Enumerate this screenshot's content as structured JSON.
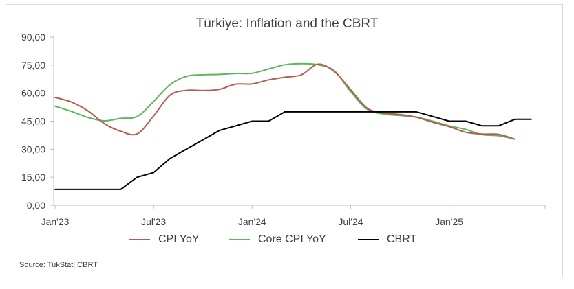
{
  "chart_data": {
    "type": "line",
    "title": "Türkiye: Inflation and the CBRT",
    "xlabel": "",
    "ylabel": "",
    "ylim": [
      0,
      90
    ],
    "yticks": [
      0,
      15,
      30,
      45,
      60,
      75,
      90
    ],
    "ytick_labels": [
      "0,00",
      "15,00",
      "30,00",
      "45,00",
      "60,00",
      "75,00",
      "90,00"
    ],
    "xticks": [
      "2023-01",
      "2023-07",
      "2024-01",
      "2024-07",
      "2025-01"
    ],
    "xtick_labels": [
      "Jan'23",
      "Jul'23",
      "Jan'24",
      "Jul'24",
      "Jan'25"
    ],
    "grid": false,
    "legend_position": "bottom",
    "source": "Source: TukStat| CBRT",
    "series": [
      {
        "name": "CPI YoY",
        "color": "#b35c50",
        "points": [
          [
            "2023-01",
            57.7
          ],
          [
            "2023-02",
            55.2
          ],
          [
            "2023-03",
            50.5
          ],
          [
            "2023-04",
            43.7
          ],
          [
            "2023-05",
            39.6
          ],
          [
            "2023-06",
            38.2
          ],
          [
            "2023-07",
            47.8
          ],
          [
            "2023-08",
            58.9
          ],
          [
            "2023-09",
            61.5
          ],
          [
            "2023-10",
            61.4
          ],
          [
            "2023-11",
            62.0
          ],
          [
            "2023-12",
            64.8
          ],
          [
            "2024-01",
            64.9
          ],
          [
            "2024-02",
            67.1
          ],
          [
            "2024-03",
            68.5
          ],
          [
            "2024-04",
            69.8
          ],
          [
            "2024-05",
            75.5
          ],
          [
            "2024-06",
            71.6
          ],
          [
            "2024-07",
            61.8
          ],
          [
            "2024-08",
            52.0
          ],
          [
            "2024-09",
            49.4
          ],
          [
            "2024-10",
            48.6
          ],
          [
            "2024-11",
            47.1
          ],
          [
            "2024-12",
            44.4
          ],
          [
            "2025-01",
            42.1
          ],
          [
            "2025-02",
            39.1
          ],
          [
            "2025-03",
            38.1
          ],
          [
            "2025-04",
            37.9
          ],
          [
            "2025-05",
            35.4
          ]
        ]
      },
      {
        "name": "Core CPI YoY",
        "color": "#5cb85c",
        "points": [
          [
            "2023-01",
            53.0
          ],
          [
            "2023-02",
            50.2
          ],
          [
            "2023-03",
            47.0
          ],
          [
            "2023-04",
            45.2
          ],
          [
            "2023-05",
            46.5
          ],
          [
            "2023-06",
            47.5
          ],
          [
            "2023-07",
            55.5
          ],
          [
            "2023-08",
            64.5
          ],
          [
            "2023-09",
            69.0
          ],
          [
            "2023-10",
            69.8
          ],
          [
            "2023-11",
            70.0
          ],
          [
            "2023-12",
            70.5
          ],
          [
            "2024-01",
            70.6
          ],
          [
            "2024-02",
            72.9
          ],
          [
            "2024-03",
            75.2
          ],
          [
            "2024-04",
            75.8
          ],
          [
            "2024-05",
            75.2
          ],
          [
            "2024-06",
            72.0
          ],
          [
            "2024-07",
            60.8
          ],
          [
            "2024-08",
            51.4
          ],
          [
            "2024-09",
            48.8
          ],
          [
            "2024-10",
            48.0
          ],
          [
            "2024-11",
            47.2
          ],
          [
            "2024-12",
            45.0
          ],
          [
            "2025-01",
            42.5
          ],
          [
            "2025-02",
            40.6
          ],
          [
            "2025-03",
            37.8
          ],
          [
            "2025-04",
            37.2
          ],
          [
            "2025-05",
            35.4
          ]
        ]
      },
      {
        "name": "CBRT",
        "color": "#000000",
        "points": [
          [
            "2023-01",
            8.5
          ],
          [
            "2023-02",
            8.5
          ],
          [
            "2023-03",
            8.5
          ],
          [
            "2023-04",
            8.5
          ],
          [
            "2023-05",
            8.5
          ],
          [
            "2023-06",
            15.0
          ],
          [
            "2023-07",
            17.5
          ],
          [
            "2023-08",
            25.0
          ],
          [
            "2023-09",
            30.0
          ],
          [
            "2023-10",
            35.0
          ],
          [
            "2023-11",
            40.0
          ],
          [
            "2023-12",
            42.5
          ],
          [
            "2024-01",
            45.0
          ],
          [
            "2024-02",
            45.0
          ],
          [
            "2024-03",
            50.0
          ],
          [
            "2024-04",
            50.0
          ],
          [
            "2024-05",
            50.0
          ],
          [
            "2024-06",
            50.0
          ],
          [
            "2024-07",
            50.0
          ],
          [
            "2024-08",
            50.0
          ],
          [
            "2024-09",
            50.0
          ],
          [
            "2024-10",
            50.0
          ],
          [
            "2024-11",
            50.0
          ],
          [
            "2024-12",
            47.5
          ],
          [
            "2025-01",
            45.0
          ],
          [
            "2025-02",
            45.0
          ],
          [
            "2025-03",
            42.5
          ],
          [
            "2025-04",
            42.5
          ],
          [
            "2025-05",
            46.0
          ],
          [
            "2025-06",
            46.0
          ]
        ]
      }
    ]
  }
}
